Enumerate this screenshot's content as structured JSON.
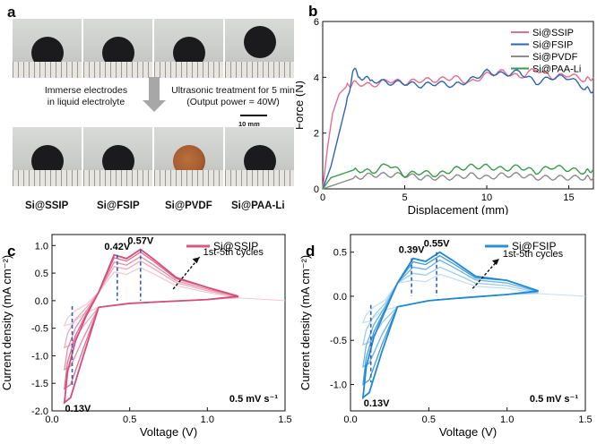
{
  "panel_a": {
    "letter": "a",
    "samples": [
      "Si@SSIP",
      "Si@FSIP",
      "Si@PVDF",
      "Si@PAA-Li"
    ],
    "note_left": [
      "Immerse electrodes",
      "in liquid electrolyte"
    ],
    "note_right": [
      "Ultrasonic treatment for 5 min",
      "(Output power = 40W)"
    ],
    "scale_bar": "10 mm"
  },
  "panel_b": {
    "letter": "b",
    "chart_data": {
      "type": "line",
      "xlabel": "Displacement (mm)",
      "ylabel": "Force (N)",
      "xlim": [
        0,
        16.5
      ],
      "ylim": [
        0,
        6
      ],
      "xticks": [
        0,
        5,
        10,
        15
      ],
      "yticks": [
        0,
        2,
        4,
        6
      ],
      "legend_position": "top-right",
      "series": [
        {
          "name": "Si@SSIP",
          "color": "#e26f8e",
          "x": [
            0,
            0.3,
            0.6,
            1.0,
            1.5,
            2.0,
            3,
            4,
            5,
            6,
            7,
            8,
            9,
            10,
            11,
            12,
            13,
            14,
            15,
            16,
            16.5
          ],
          "y": [
            0,
            1.5,
            2.7,
            3.4,
            3.7,
            3.8,
            3.7,
            3.9,
            3.8,
            3.9,
            3.9,
            4.0,
            3.8,
            4.1,
            4.2,
            4.0,
            4.3,
            4.0,
            4.1,
            3.9,
            4.0
          ]
        },
        {
          "name": "Si@FSIP",
          "color": "#2f64b4",
          "x": [
            0,
            0.5,
            1.0,
            1.5,
            1.9,
            2.3,
            3,
            4,
            5,
            6,
            7,
            8,
            9,
            10,
            11,
            12,
            13,
            14,
            15,
            16,
            16.5
          ],
          "y": [
            0,
            0.8,
            2.0,
            3.2,
            4.3,
            4.0,
            3.9,
            3.8,
            3.8,
            3.7,
            3.8,
            3.7,
            3.9,
            4.2,
            4.1,
            4.2,
            3.8,
            4.0,
            4.0,
            3.6,
            3.5
          ]
        },
        {
          "name": "Si@PVDF",
          "color": "#8c8c8c",
          "x": [
            0,
            1,
            2,
            3,
            4,
            5,
            6,
            7,
            8,
            9,
            10,
            11,
            12,
            13,
            14,
            15,
            16,
            16.5
          ],
          "y": [
            0,
            0.2,
            0.4,
            0.5,
            0.5,
            0.5,
            0.4,
            0.4,
            0.4,
            0.5,
            0.4,
            0.5,
            0.5,
            0.4,
            0.4,
            0.4,
            0.4,
            0.4
          ]
        },
        {
          "name": "Si@PAA-Li",
          "color": "#3b9a4c",
          "x": [
            0,
            0.5,
            1,
            2,
            3,
            4,
            5,
            6,
            7,
            8,
            9,
            10,
            11,
            12,
            13,
            14,
            15,
            16,
            16.5
          ],
          "y": [
            0,
            0.4,
            0.5,
            0.7,
            0.6,
            0.9,
            0.5,
            0.6,
            0.5,
            0.7,
            0.8,
            0.8,
            0.7,
            0.8,
            0.6,
            0.8,
            0.7,
            0.6,
            0.7
          ]
        }
      ]
    }
  },
  "panel_c": {
    "letter": "c",
    "scan_rate": "0.5 mV s⁻¹",
    "peak_labels": [
      "0.42V",
      "0.57V"
    ],
    "low_label": "0.13V",
    "cycles_note": "1st-5th cycles",
    "chart_data": {
      "type": "line",
      "xlabel": "Voltage (V)",
      "ylabel": "Current density (mA cm⁻²)",
      "xlim": [
        0,
        1.5
      ],
      "ylim": [
        -2.0,
        1.2
      ],
      "xticks": [
        0.0,
        0.5,
        1.0,
        1.5
      ],
      "yticks": [
        -2.0,
        -1.5,
        -1.0,
        -0.5,
        0.0,
        0.5,
        1.0
      ],
      "legend_position": "top-right",
      "series": [
        {
          "name": "Si@SSIP",
          "color": "#d85a7f"
        }
      ],
      "cycles": [
        {
          "peak1": 0.52,
          "peak2": 0.6,
          "min": -0.45,
          "end": 0.05,
          "color": "#f4c8d4"
        },
        {
          "peak1": 0.62,
          "peak2": 0.72,
          "min": -0.85,
          "end": 0.06,
          "color": "#eeaabd"
        },
        {
          "peak1": 0.7,
          "peak2": 0.8,
          "min": -1.25,
          "end": 0.07,
          "color": "#e78aa6"
        },
        {
          "peak1": 0.78,
          "peak2": 0.88,
          "min": -1.6,
          "end": 0.08,
          "color": "#df6c8f"
        },
        {
          "peak1": 0.83,
          "peak2": 0.93,
          "min": -1.85,
          "end": 0.08,
          "color": "#d44d79"
        }
      ]
    }
  },
  "panel_d": {
    "letter": "d",
    "scan_rate": "0.5 mV s⁻¹",
    "peak_labels": [
      "0.39V",
      "0.55V"
    ],
    "low_label": "0.13V",
    "cycles_note": "1st-5th cycles",
    "chart_data": {
      "type": "line",
      "xlabel": "Voltage (V)",
      "ylabel": "Current density (mA cm⁻²)",
      "xlim": [
        0,
        1.5
      ],
      "ylim": [
        -1.3,
        0.7
      ],
      "xticks": [
        0.0,
        0.5,
        1.0,
        1.5
      ],
      "yticks": [
        -1.0,
        -0.5,
        0.0,
        0.5
      ],
      "legend_position": "top-right",
      "series": [
        {
          "name": "Si@FSIP",
          "color": "#2a8fd6"
        }
      ],
      "cycles": [
        {
          "peak1": 0.18,
          "peak2": 0.25,
          "min": -0.3,
          "end": 0.03,
          "color": "#c3def3"
        },
        {
          "peak1": 0.26,
          "peak2": 0.33,
          "min": -0.55,
          "end": 0.04,
          "color": "#9ccbec"
        },
        {
          "peak1": 0.33,
          "peak2": 0.41,
          "min": -0.8,
          "end": 0.05,
          "color": "#6cb2e4"
        },
        {
          "peak1": 0.39,
          "peak2": 0.46,
          "min": -1.0,
          "end": 0.06,
          "color": "#3f9bdc"
        },
        {
          "peak1": 0.43,
          "peak2": 0.5,
          "min": -1.15,
          "end": 0.06,
          "color": "#1e88d2"
        }
      ]
    }
  }
}
